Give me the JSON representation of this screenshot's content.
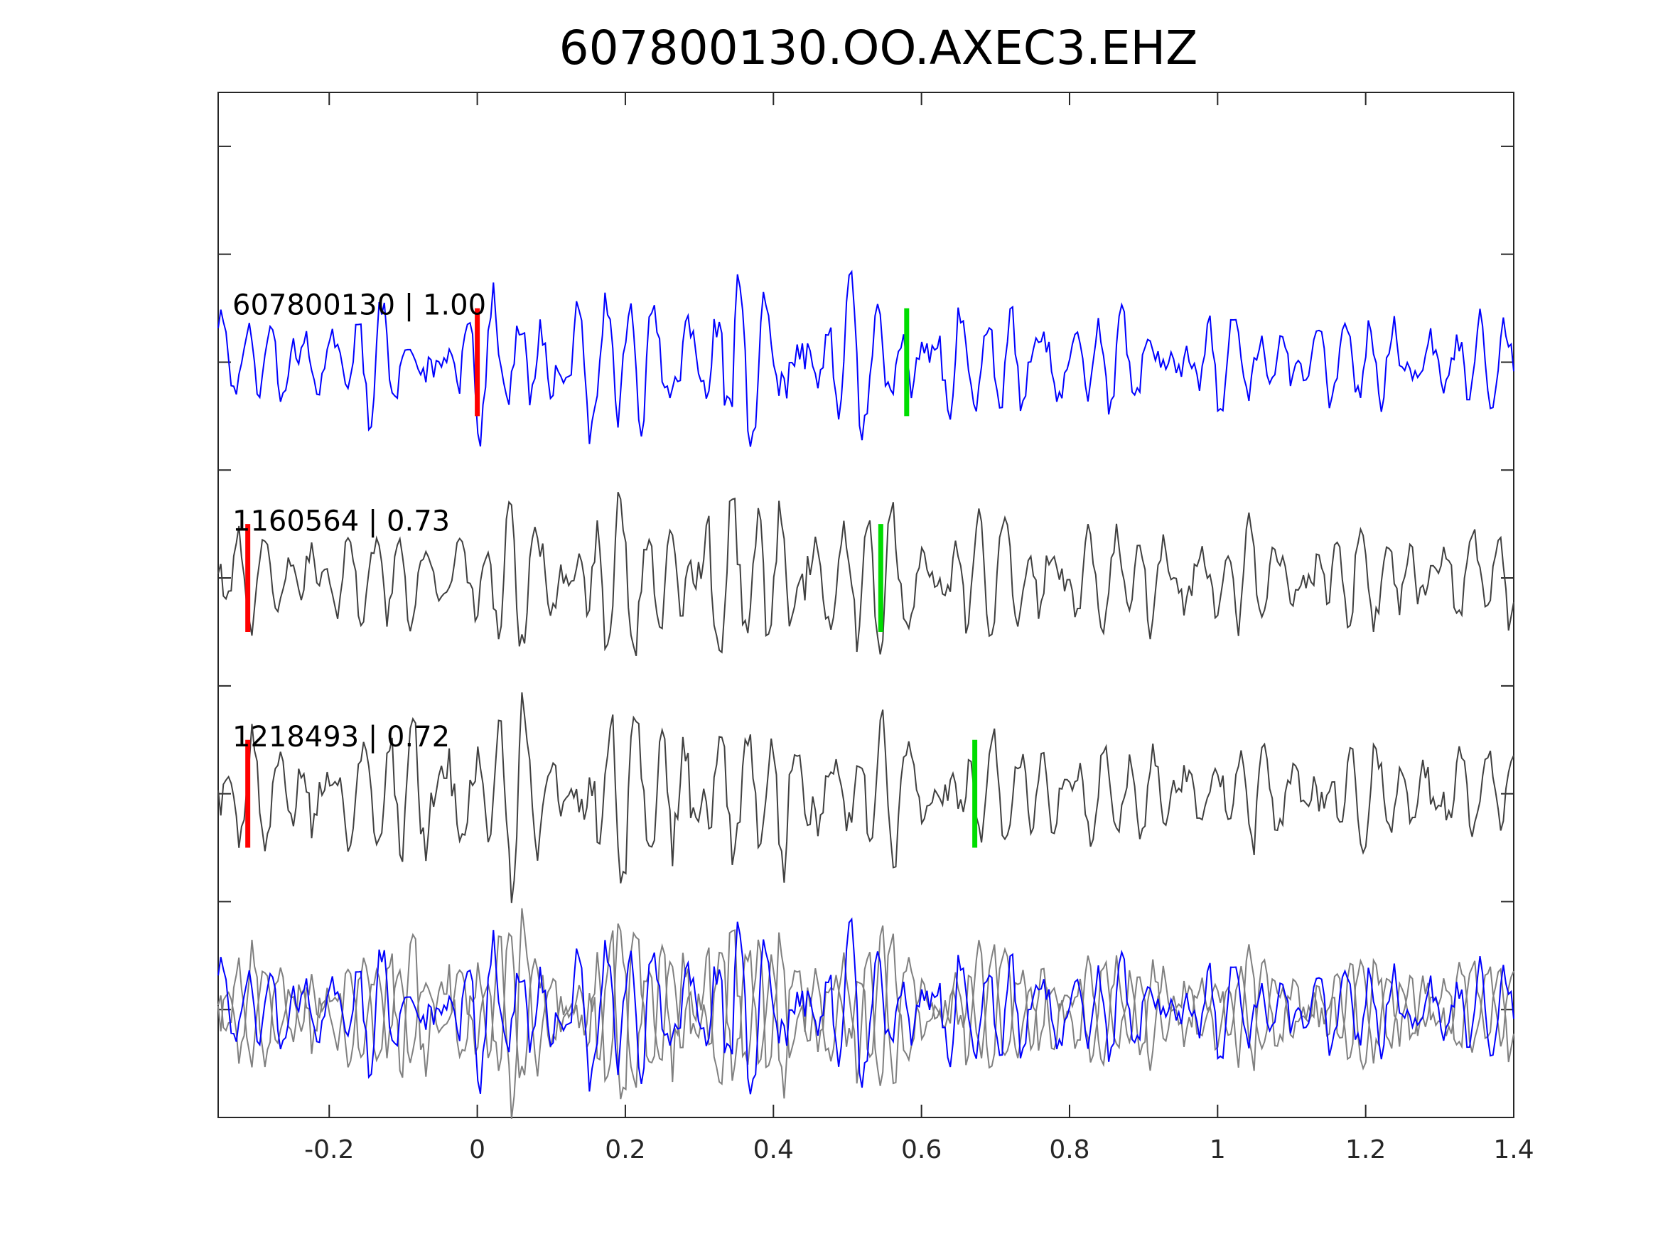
{
  "chart_data": {
    "type": "line",
    "title": "607800130.OO.AXEC3.EHZ",
    "xlabel": "",
    "ylabel": "",
    "xlim": [
      -0.35,
      1.4
    ],
    "x_ticks": [
      -0.2,
      0,
      0.2,
      0.4,
      0.6,
      0.8,
      1,
      1.2,
      1.4
    ],
    "x_tick_labels": [
      "-0.2",
      "0",
      "0.2",
      "0.4",
      "0.6",
      "0.8",
      "1",
      "1.2",
      "1.4"
    ],
    "ylim": [
      -4.5,
      0.25
    ],
    "grid": false,
    "traces": [
      {
        "label": "607800130 | 1.00",
        "offset": -1,
        "color": "#0000ff",
        "p_pick": 0.0,
        "s_pick": 0.58
      },
      {
        "label": "1160564 | 0.73",
        "offset": -2,
        "color": "#404040",
        "p_pick": -0.31,
        "s_pick": 0.545
      },
      {
        "label": "1218493 | 0.72",
        "offset": -3,
        "color": "#404040",
        "p_pick": -0.31,
        "s_pick": 0.672
      }
    ],
    "overlay": {
      "offset": -4,
      "main_color": "#0000ff",
      "other_color": "#808080"
    },
    "pick_colors": {
      "p": "#ff0000",
      "s": "#00dd00"
    }
  }
}
